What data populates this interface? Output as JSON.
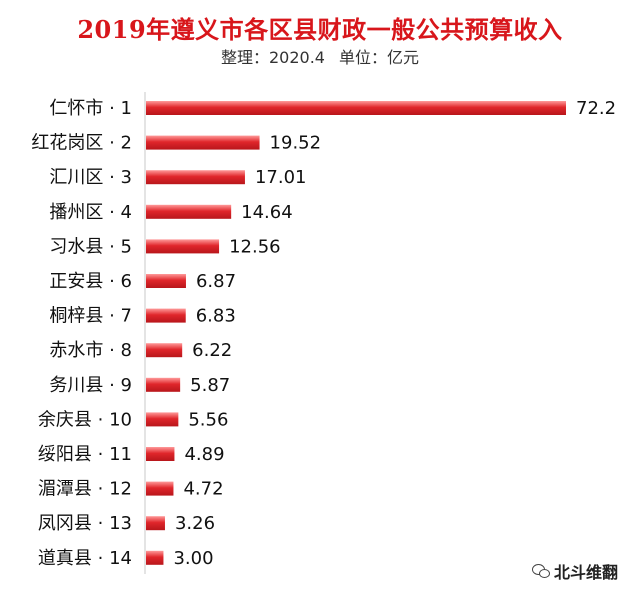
{
  "chart_data": {
    "type": "bar",
    "orientation": "horizontal",
    "title": "2019年遵义市各区县财政一般公共预算收入",
    "subtitle_source": "整理：2020.4",
    "subtitle_unit": "单位：亿元",
    "categories": [
      "仁怀市 · 1",
      "红花岗区 · 2",
      "汇川区 · 3",
      "播州区 · 4",
      "习水县 · 5",
      "正安县 · 6",
      "桐梓县 · 7",
      "赤水市 · 8",
      "务川县 · 9",
      "余庆县 · 10",
      "绥阳县 · 11",
      "湄潭县 · 12",
      "凤冈县 · 13",
      "道真县 · 14"
    ],
    "values": [
      72.2,
      19.52,
      17.01,
      14.64,
      12.56,
      6.87,
      6.83,
      6.22,
      5.87,
      5.56,
      4.89,
      4.72,
      3.26,
      3.0
    ],
    "value_labels": [
      "72.2",
      "19.52",
      "17.01",
      "14.64",
      "12.56",
      "6.87",
      "6.83",
      "6.22",
      "5.87",
      "5.56",
      "4.89",
      "4.72",
      "3.26",
      "3.00"
    ],
    "xlim": [
      0,
      72.2
    ],
    "grid": false,
    "legend": "none",
    "bar_color": "#e0262b",
    "bar_highlight": "#ff8a8a"
  },
  "watermark": {
    "text": "北斗维翻",
    "icon": "wechat-icon"
  }
}
